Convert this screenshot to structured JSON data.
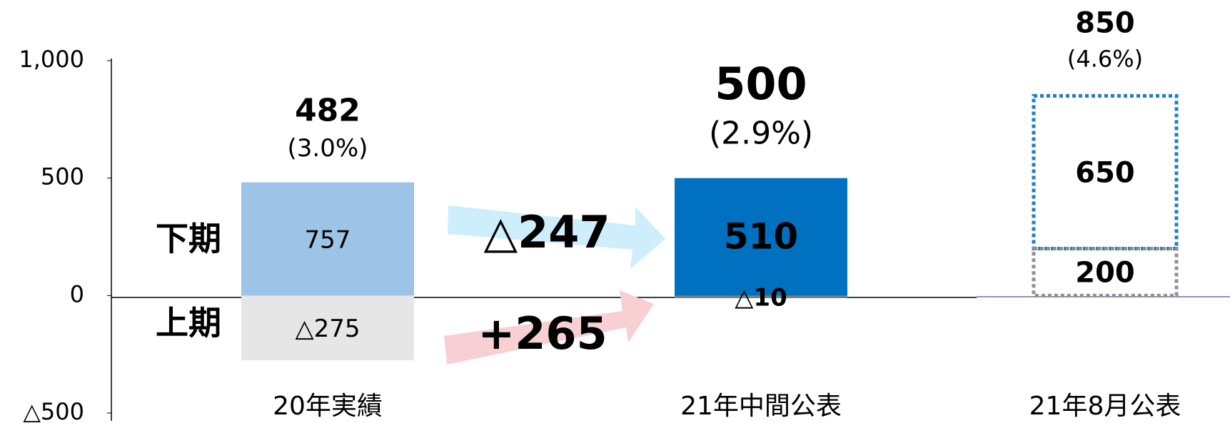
{
  "chart_data": {
    "type": "bar",
    "categories": [
      "20年実績",
      "21年中間公表",
      "21年8月公表"
    ],
    "series": [
      {
        "name": "上期",
        "colors": [
          "#e6e6e6",
          "#7f7f7f",
          "#909090"
        ],
        "values": [
          -275,
          -10,
          200
        ],
        "value_labels": [
          "△275",
          "△10",
          "200"
        ]
      },
      {
        "name": "下期",
        "name_color": "#1f7fc4",
        "colors": [
          "#9dc3e6",
          "#0070c0",
          "#1f7fc4"
        ],
        "values": [
          757,
          510,
          650
        ]
      }
    ],
    "totals": [
      482,
      500,
      850
    ],
    "percentages": [
      3.0,
      2.9,
      4.6
    ],
    "percentage_labels": [
      "(3.0%)",
      "(2.9%)",
      "(4.6%)"
    ],
    "dotted": [
      false,
      false,
      true
    ],
    "annotations": [
      {
        "text": "△247",
        "color": "#cdeefa"
      },
      {
        "text": "+265",
        "color": "#f8cfd3"
      }
    ],
    "ylim": [
      -500,
      1000
    ],
    "yticks": [
      {
        "value": -500,
        "label": "△500"
      },
      0,
      500,
      {
        "value": 1000,
        "label": "1,000"
      }
    ]
  }
}
